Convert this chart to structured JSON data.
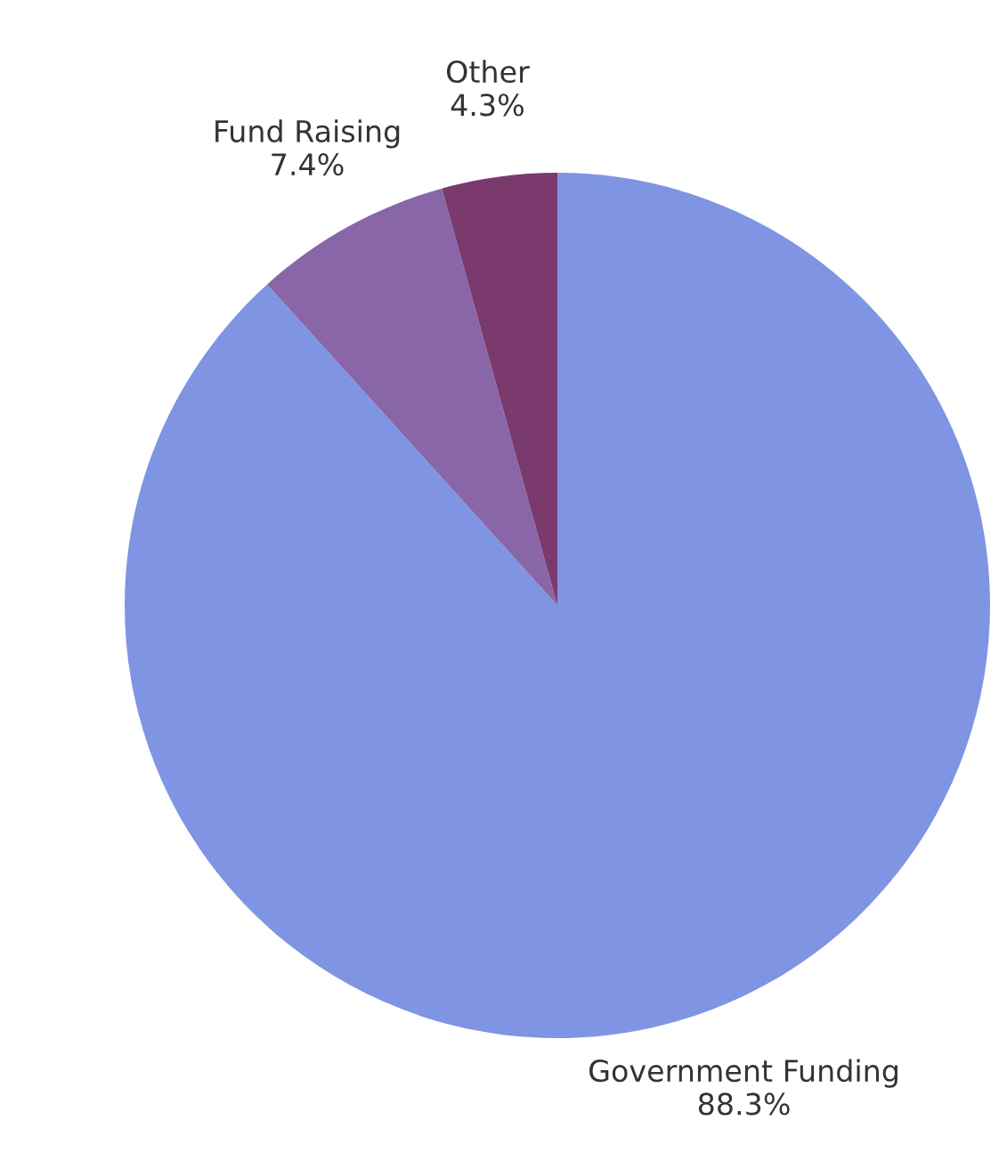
{
  "chart_data": {
    "type": "pie",
    "categories": [
      "Government Funding",
      "Fund Raising",
      "Other"
    ],
    "values": [
      88.3,
      7.4,
      4.3
    ],
    "value_labels": [
      "88.3%",
      "7.4%",
      "4.3%"
    ],
    "colors": [
      "#7f95e3",
      "#8866a8",
      "#7a3a6e"
    ],
    "legend": false
  }
}
